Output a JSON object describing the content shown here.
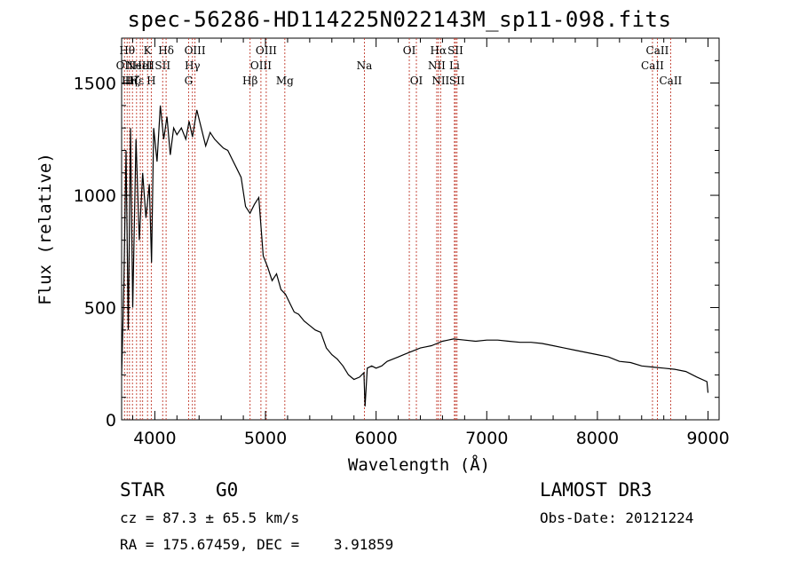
{
  "chart_data": {
    "type": "line",
    "title": "spec-56286-HD114225N022143M_sp11-098.fits",
    "xlabel": "Wavelength (Å)",
    "ylabel": "Flux (relative)",
    "xlim": [
      3700,
      9100
    ],
    "ylim": [
      0,
      1700
    ],
    "x_ticks": [
      4000,
      5000,
      6000,
      7000,
      8000,
      9000
    ],
    "x_tick_labels": [
      "4000",
      "5000",
      "6000",
      "7000",
      "8000",
      "9000"
    ],
    "y_ticks": [
      0,
      500,
      1000,
      1500
    ],
    "y_tick_labels": [
      "0",
      "500",
      "1000",
      "1500"
    ],
    "grid": false,
    "series": [
      {
        "x": [
          3700,
          3720,
          3740,
          3760,
          3780,
          3800,
          3830,
          3860,
          3890,
          3920,
          3950,
          3970,
          3990,
          4020,
          4050,
          4080,
          4110,
          4140,
          4170,
          4200,
          4240,
          4280,
          4310,
          4340,
          4380,
          4420,
          4460,
          4500,
          4540,
          4580,
          4620,
          4660,
          4700,
          4740,
          4780,
          4820,
          4860,
          4900,
          4940,
          4980,
          5020,
          5060,
          5100,
          5140,
          5180,
          5220,
          5260,
          5300,
          5350,
          5400,
          5450,
          5500,
          5550,
          5600,
          5650,
          5700,
          5750,
          5800,
          5850,
          5890,
          5900,
          5920,
          5960,
          6000,
          6050,
          6100,
          6150,
          6200,
          6250,
          6300,
          6350,
          6400,
          6450,
          6500,
          6550,
          6600,
          6650,
          6700,
          6800,
          6900,
          7000,
          7100,
          7200,
          7300,
          7400,
          7500,
          7600,
          7700,
          7800,
          7900,
          8000,
          8100,
          8200,
          8300,
          8400,
          8500,
          8600,
          8700,
          8800,
          8900,
          8990,
          9000
        ],
        "y": [
          200,
          600,
          1200,
          400,
          1300,
          500,
          1250,
          800,
          1100,
          900,
          1050,
          700,
          1300,
          1150,
          1400,
          1250,
          1350,
          1180,
          1300,
          1270,
          1300,
          1250,
          1330,
          1260,
          1380,
          1300,
          1220,
          1280,
          1250,
          1230,
          1210,
          1200,
          1160,
          1120,
          1080,
          950,
          920,
          960,
          990,
          730,
          680,
          620,
          650,
          580,
          560,
          520,
          480,
          470,
          440,
          420,
          400,
          390,
          320,
          290,
          270,
          240,
          200,
          180,
          190,
          210,
          60,
          230,
          240,
          230,
          240,
          260,
          270,
          280,
          290,
          300,
          310,
          320,
          325,
          330,
          340,
          350,
          355,
          360,
          355,
          350,
          355,
          355,
          350,
          345,
          345,
          340,
          330,
          320,
          310,
          300,
          290,
          280,
          260,
          255,
          240,
          235,
          230,
          225,
          215,
          190,
          170,
          120
        ]
      }
    ],
    "lines": [
      {
        "wave": 3726,
        "label": "OII",
        "row": 2
      },
      {
        "wave": 3750,
        "label": "Hθ",
        "row": 1
      },
      {
        "wave": 3771,
        "label": "Hη",
        "row": 3
      },
      {
        "wave": 3798,
        "label": "Hζ",
        "row": 3
      },
      {
        "wave": 3835,
        "label": "Hε",
        "row": 3
      },
      {
        "wave": 3869,
        "label": "NeIII",
        "row": 2
      },
      {
        "wave": 3890,
        "label": "HeI",
        "row": 2
      },
      {
        "wave": 3934,
        "label": "K",
        "row": 1
      },
      {
        "wave": 3968,
        "label": "H",
        "row": 3
      },
      {
        "wave": 4071,
        "label": "SII",
        "row": 2
      },
      {
        "wave": 4102,
        "label": "Hδ",
        "row": 1
      },
      {
        "wave": 4305,
        "label": "G",
        "row": 3
      },
      {
        "wave": 4340,
        "label": "Hγ",
        "row": 2
      },
      {
        "wave": 4363,
        "label": "OIII",
        "row": 1
      },
      {
        "wave": 4861,
        "label": "Hβ",
        "row": 3
      },
      {
        "wave": 4959,
        "label": "OIII",
        "row": 2
      },
      {
        "wave": 5007,
        "label": "OIII",
        "row": 1
      },
      {
        "wave": 5175,
        "label": "Mg",
        "row": 3
      },
      {
        "wave": 5894,
        "label": "Na",
        "row": 2
      },
      {
        "wave": 6300,
        "label": "OI",
        "row": 1
      },
      {
        "wave": 6364,
        "label": "OI",
        "row": 3
      },
      {
        "wave": 6548,
        "label": "NII",
        "row": 2
      },
      {
        "wave": 6563,
        "label": "Hα",
        "row": 1
      },
      {
        "wave": 6583,
        "label": "NII",
        "row": 3
      },
      {
        "wave": 6708,
        "label": "Li",
        "row": 2
      },
      {
        "wave": 6717,
        "label": "SII",
        "row": 1
      },
      {
        "wave": 6731,
        "label": "SII",
        "row": 3
      },
      {
        "wave": 8498,
        "label": "CaII",
        "row": 2
      },
      {
        "wave": 8542,
        "label": "CaII",
        "row": 1
      },
      {
        "wave": 8662,
        "label": "CaII",
        "row": 3
      }
    ]
  },
  "info": {
    "class": "STAR",
    "subclass": "G0",
    "survey": "LAMOST DR3",
    "cz": "cz = 87.3 ± 65.5 km/s",
    "obs_date": "Obs-Date: 20121224",
    "radec": "RA = 175.67459, DEC =    3.91859"
  }
}
